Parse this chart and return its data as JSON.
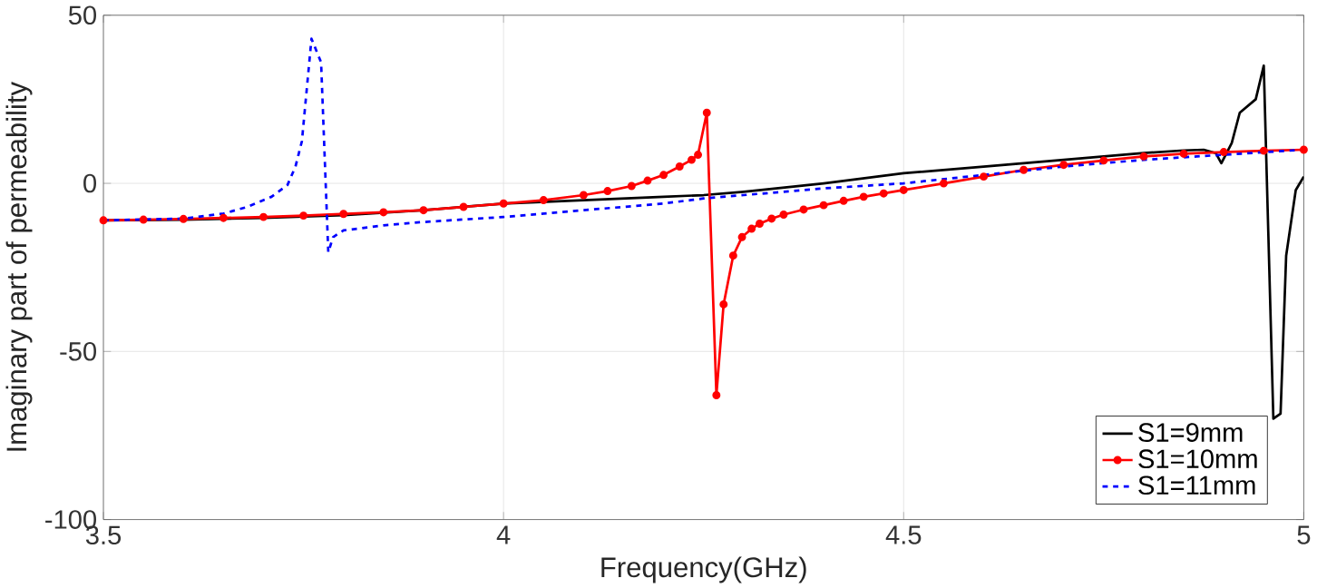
{
  "chart_data": {
    "type": "line",
    "xlabel": "Frequency(GHz)",
    "ylabel": "Imaginary part of permeability",
    "xlim": [
      3.5,
      5
    ],
    "ylim": [
      -100,
      50
    ],
    "xticks": [
      3.5,
      4,
      4.5,
      5
    ],
    "yticks": [
      -100,
      -50,
      0,
      50
    ],
    "grid": true,
    "legend": "bottom right",
    "series": [
      {
        "name": "S1=9mm",
        "color": "#000000",
        "line_style": "solid",
        "marker": "none",
        "x": [
          3.5,
          3.6,
          3.7,
          3.8,
          3.9,
          4.0,
          4.1,
          4.2,
          4.25,
          4.3,
          4.4,
          4.5,
          4.6,
          4.7,
          4.8,
          4.85,
          4.875,
          4.89,
          4.897,
          4.91,
          4.92,
          4.94,
          4.95,
          4.962,
          4.971,
          4.978,
          4.99,
          5.0
        ],
        "values": [
          -11,
          -10.8,
          -10.3,
          -9.5,
          -8,
          -6,
          -5,
          -4,
          -3.5,
          -2.5,
          0,
          3,
          5,
          7,
          9,
          9.8,
          10,
          9,
          6,
          12,
          21,
          25,
          35,
          -70,
          -68.5,
          -21.5,
          -2,
          2
        ]
      },
      {
        "name": "S1=10mm",
        "color": "#ff0000",
        "line_style": "solid",
        "marker": "circle",
        "x": [
          3.5,
          3.55,
          3.6,
          3.65,
          3.7,
          3.75,
          3.8,
          3.85,
          3.9,
          3.95,
          4.0,
          4.05,
          4.1,
          4.13,
          4.16,
          4.18,
          4.2,
          4.22,
          4.235,
          4.243,
          4.254,
          4.266,
          4.275,
          4.287,
          4.298,
          4.31,
          4.32,
          4.335,
          4.35,
          4.375,
          4.4,
          4.425,
          4.45,
          4.475,
          4.5,
          4.55,
          4.6,
          4.65,
          4.7,
          4.75,
          4.8,
          4.85,
          4.9,
          4.95,
          5.0
        ],
        "values": [
          -11,
          -10.8,
          -10.6,
          -10.3,
          -10,
          -9.6,
          -9.1,
          -8.6,
          -8,
          -7,
          -6,
          -5,
          -3.5,
          -2.3,
          -0.8,
          0.8,
          2.5,
          5,
          7,
          8.5,
          21,
          -63,
          -36,
          -21.5,
          -16,
          -13.5,
          -12,
          -10.5,
          -9.3,
          -7.8,
          -6.5,
          -5.2,
          -4,
          -3,
          -2,
          0,
          2,
          4,
          5.5,
          6.8,
          8,
          8.8,
          9.3,
          9.7,
          10
        ]
      },
      {
        "name": "S1=11mm",
        "color": "#0000ff",
        "line_style": "dashed",
        "marker": "none",
        "x": [
          3.5,
          3.6,
          3.65,
          3.68,
          3.71,
          3.73,
          3.74,
          3.748,
          3.76,
          3.772,
          3.781,
          3.787,
          3.8,
          3.85,
          3.9,
          4.0,
          4.1,
          4.2,
          4.25,
          4.3,
          4.4,
          4.5,
          4.6,
          4.7,
          4.8,
          4.9,
          5.0
        ],
        "values": [
          -11,
          -10.5,
          -9,
          -7,
          -4,
          -0.5,
          5,
          12.5,
          43,
          36,
          -20.5,
          -16,
          -14,
          -12.5,
          -11.5,
          -10,
          -8,
          -6,
          -4.5,
          -3.5,
          -1.5,
          0,
          2.5,
          5,
          7,
          8.5,
          10
        ]
      }
    ]
  }
}
